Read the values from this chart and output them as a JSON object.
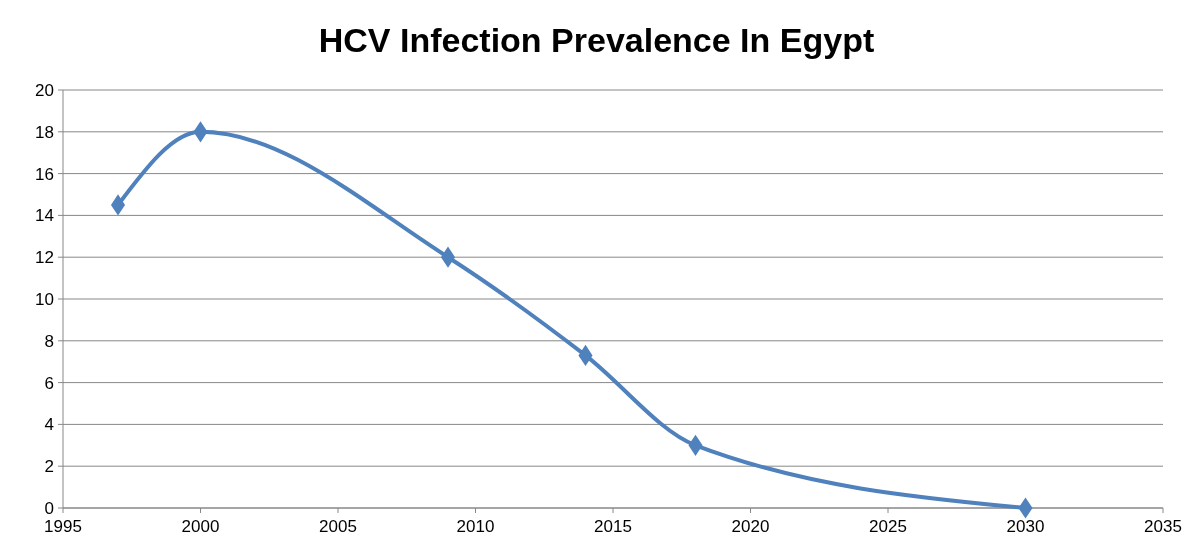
{
  "chart_data": {
    "type": "line",
    "title": "HCV Infection Prevalence In Egypt",
    "x": [
      1997,
      2000,
      2009,
      2014,
      2018,
      2030
    ],
    "series": [
      {
        "color": "#4f81bd",
        "values": [
          14.5,
          18,
          12,
          7.3,
          3,
          0
        ]
      }
    ],
    "xlim": [
      1995,
      2035
    ],
    "xticks": [
      1995,
      2000,
      2005,
      2010,
      2015,
      2020,
      2025,
      2030,
      2035
    ],
    "ylim": [
      0,
      20
    ],
    "yticks": [
      0,
      2,
      4,
      6,
      8,
      10,
      12,
      14,
      16,
      18,
      20
    ],
    "grid": "y",
    "marker": "diamond",
    "line_style": "solid"
  }
}
